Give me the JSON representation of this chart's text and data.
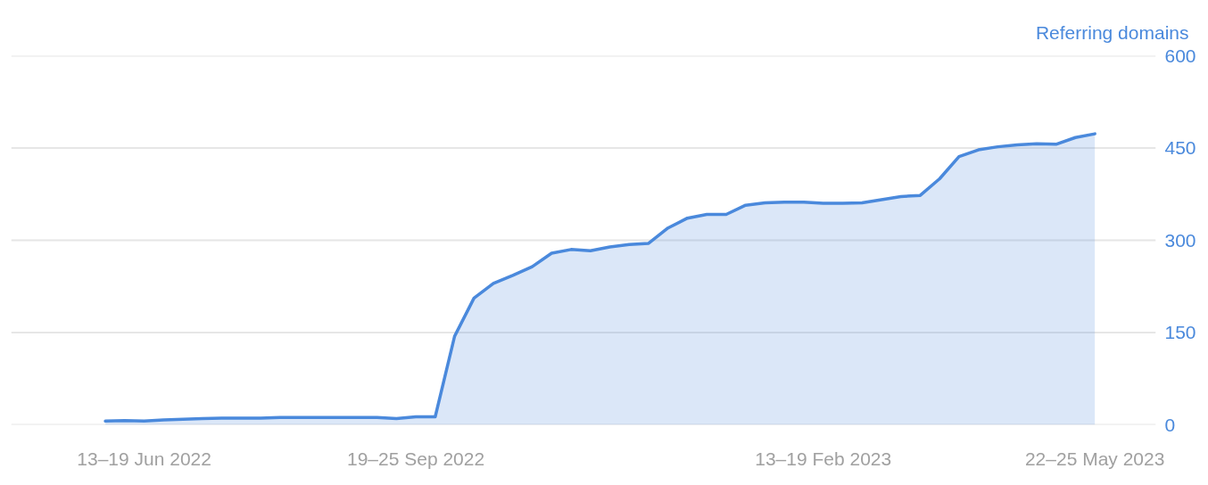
{
  "chart_data": {
    "type": "area",
    "ylabel": "Referring domains",
    "x": [
      "2022-05-30",
      "2022-06-06",
      "2022-06-13",
      "2022-06-20",
      "2022-06-27",
      "2022-07-04",
      "2022-07-11",
      "2022-07-18",
      "2022-07-25",
      "2022-08-01",
      "2022-08-08",
      "2022-08-15",
      "2022-08-22",
      "2022-08-29",
      "2022-09-05",
      "2022-09-12",
      "2022-09-19",
      "2022-09-26",
      "2022-10-03",
      "2022-10-10",
      "2022-10-17",
      "2022-10-24",
      "2022-10-31",
      "2022-11-07",
      "2022-11-14",
      "2022-11-21",
      "2022-11-28",
      "2022-12-05",
      "2022-12-12",
      "2022-12-19",
      "2022-12-26",
      "2023-01-02",
      "2023-01-09",
      "2023-01-16",
      "2023-01-23",
      "2023-01-30",
      "2023-02-06",
      "2023-02-13",
      "2023-02-20",
      "2023-02-27",
      "2023-03-06",
      "2023-03-13",
      "2023-03-20",
      "2023-03-27",
      "2023-04-03",
      "2023-04-10",
      "2023-04-17",
      "2023-04-24",
      "2023-05-01",
      "2023-05-08",
      "2023-05-15",
      "2023-05-22"
    ],
    "series": [
      {
        "color": "#4a89dc",
        "values": [
          6,
          7,
          6,
          8,
          9,
          10,
          11,
          11,
          11,
          12,
          12,
          12,
          12,
          12,
          12,
          10,
          13,
          13,
          144,
          206,
          230,
          243,
          257,
          279,
          285,
          283,
          289,
          293,
          295,
          320,
          336,
          342,
          342,
          357,
          361,
          362,
          362,
          360,
          360,
          361,
          366,
          371,
          373,
          400,
          436,
          447,
          452,
          455,
          457,
          456,
          467,
          473
        ]
      }
    ],
    "xlim": [
      "2022-04-26",
      "2023-06-13"
    ],
    "xticks": [
      {
        "value": "2022-06-13",
        "label": "13–19 Jun 2022"
      },
      {
        "value": "2022-09-19",
        "label": "19–25 Sep 2022"
      },
      {
        "value": "2023-02-13",
        "label": "13–19 Feb 2023"
      },
      {
        "value": "2023-05-22",
        "label": "22–25 May 2023"
      }
    ],
    "ylim": [
      0,
      600
    ],
    "yticks": [
      0,
      150,
      300,
      450,
      600
    ],
    "grid": "y"
  }
}
